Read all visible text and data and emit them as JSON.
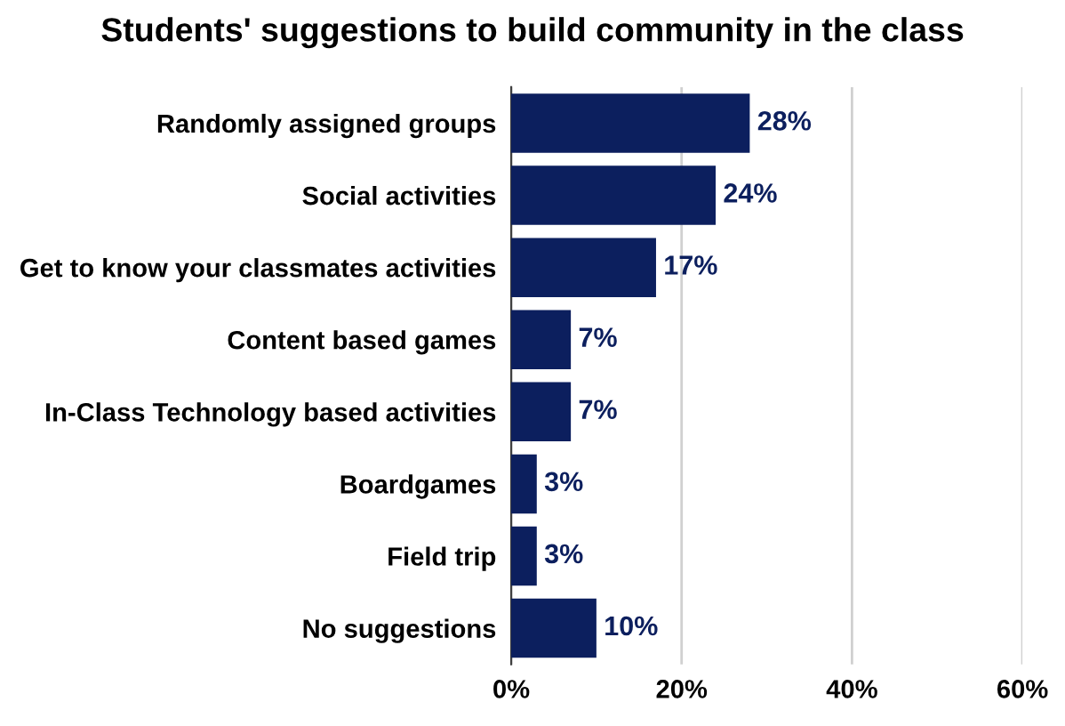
{
  "chart_data": {
    "type": "bar",
    "orientation": "horizontal",
    "title": "Students' suggestions to build community in the class",
    "categories": [
      "Randomly assigned groups",
      "Social activities",
      "Get to know your classmates activities",
      "Content based games",
      "In-Class Technology based activities",
      "Boardgames",
      "Field trip",
      "No suggestions"
    ],
    "values": [
      28,
      24,
      17,
      7,
      7,
      3,
      3,
      10
    ],
    "value_labels": [
      "28%",
      "24%",
      "17%",
      "7%",
      "7%",
      "3%",
      "3%",
      "10%"
    ],
    "color": "#0c1f5e",
    "xlim": [
      0,
      60
    ],
    "xticks": [
      {
        "value": 0,
        "label": "0%"
      },
      {
        "value": 20,
        "label": "20%"
      },
      {
        "value": 40,
        "label": "40%"
      },
      {
        "value": 60,
        "label": "60%"
      }
    ],
    "grid": "x",
    "legend": false
  }
}
